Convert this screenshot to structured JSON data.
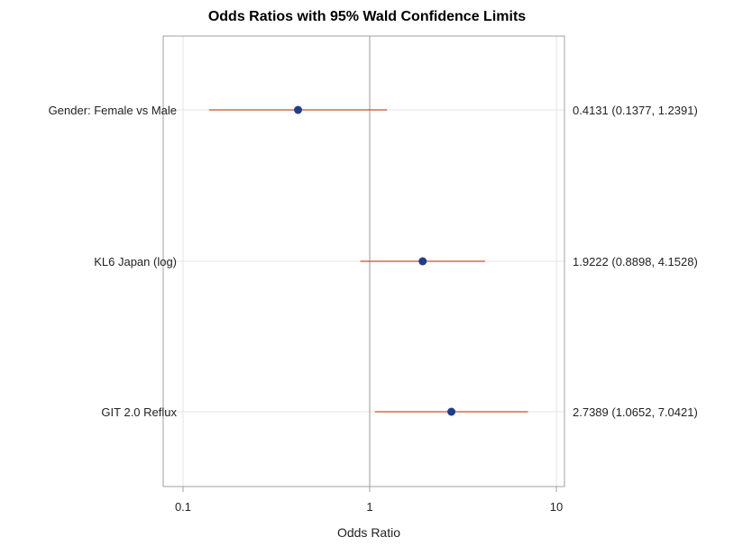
{
  "chart_data": {
    "type": "forest",
    "title": "Odds Ratios with 95% Wald Confidence Limits",
    "xlabel": "Odds Ratio",
    "x_scale": "log",
    "xlim": [
      0.1,
      10
    ],
    "x_ticks": [
      {
        "value": 0.1,
        "label": "0.1"
      },
      {
        "value": 1,
        "label": "1"
      },
      {
        "value": 10,
        "label": "10"
      }
    ],
    "reference_line": 1,
    "grid": true,
    "rows": [
      {
        "label": "Gender: Female vs Male",
        "estimate": 0.4131,
        "lower": 0.1377,
        "upper": 1.2391,
        "value_text": "0.4131 (0.1377, 1.2391)"
      },
      {
        "label": "KL6 Japan (log)",
        "estimate": 1.9222,
        "lower": 0.8898,
        "upper": 4.1528,
        "value_text": "1.9222 (0.8898, 4.1528)"
      },
      {
        "label": "GIT 2.0 Reflux",
        "estimate": 2.7389,
        "lower": 1.0652,
        "upper": 7.0421,
        "value_text": "2.7389 (1.0652, 7.0421)"
      }
    ],
    "colors": {
      "marker": "#1f3d8c",
      "ci_line": "#c0552b",
      "reference": "#999999",
      "grid": "#e6e6e6",
      "frame": "#a0a0a0"
    }
  }
}
